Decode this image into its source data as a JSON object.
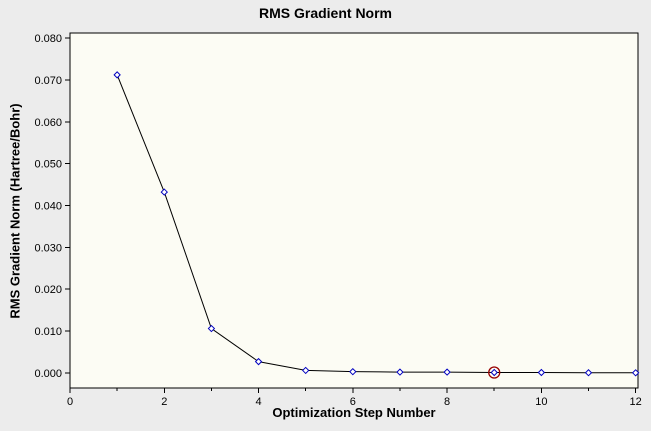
{
  "window": {
    "background_color": "#ececec"
  },
  "chart_data": {
    "type": "line",
    "title": "RMS Gradient Norm",
    "xlabel": "Optimization Step Number",
    "ylabel": "RMS Gradient Norm (Hartree/Bohr)",
    "x": [
      1,
      2,
      3,
      4,
      5,
      6,
      7,
      8,
      9,
      10,
      11,
      12
    ],
    "y": [
      0.0712,
      0.0432,
      0.0106,
      0.0027,
      0.0006,
      0.0003,
      0.0002,
      0.0002,
      0.0001,
      0.0001,
      5e-05,
      3e-05
    ],
    "xlim": [
      0,
      12.05
    ],
    "ylim": [
      -0.0036,
      0.0812
    ],
    "x_major_ticks": [
      0,
      2,
      4,
      6,
      8,
      10,
      12
    ],
    "x_major_tick_labels": [
      "0",
      "2",
      "4",
      "6",
      "8",
      "10",
      "12"
    ],
    "x_minor_ticks": [
      1,
      3,
      5,
      7,
      9,
      11
    ],
    "y_ticks": [
      0.0,
      0.01,
      0.02,
      0.03,
      0.04,
      0.05,
      0.06,
      0.07,
      0.08
    ],
    "y_tick_labels": [
      "0.000",
      "0.010",
      "0.020",
      "0.030",
      "0.040",
      "0.050",
      "0.060",
      "0.070",
      "0.080"
    ],
    "highlighted_point_index": 8,
    "grid": false,
    "legend_position": "none",
    "colors": {
      "plot_background": "#fcfcf4",
      "axis": "#000000",
      "line": "#000000",
      "marker_stroke": "#0000bf",
      "marker_fill": "#ffffff",
      "highlight_circle": "#990000",
      "text": "#000000"
    }
  }
}
